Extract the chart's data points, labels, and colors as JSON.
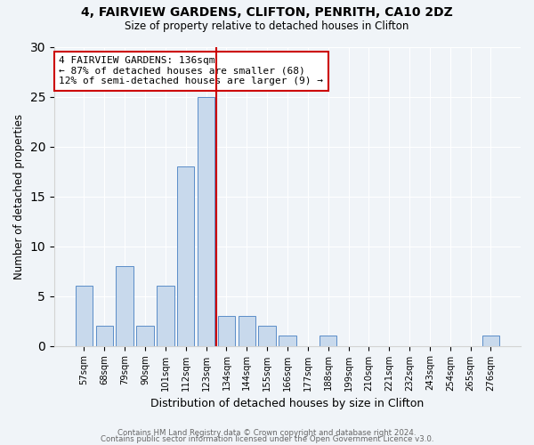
{
  "title1": "4, FAIRVIEW GARDENS, CLIFTON, PENRITH, CA10 2DZ",
  "title2": "Size of property relative to detached houses in Clifton",
  "xlabel": "Distribution of detached houses by size in Clifton",
  "ylabel": "Number of detached properties",
  "categories": [
    "57sqm",
    "68sqm",
    "79sqm",
    "90sqm",
    "101sqm",
    "112sqm",
    "123sqm",
    "134sqm",
    "144sqm",
    "155sqm",
    "166sqm",
    "177sqm",
    "188sqm",
    "199sqm",
    "210sqm",
    "221sqm",
    "232sqm",
    "243sqm",
    "254sqm",
    "265sqm",
    "276sqm"
  ],
  "values": [
    6,
    2,
    8,
    2,
    6,
    18,
    25,
    3,
    3,
    2,
    1,
    0,
    1,
    0,
    0,
    0,
    0,
    0,
    0,
    0,
    1
  ],
  "bar_color": "#c8d9ec",
  "bar_edge_color": "#5b8dc8",
  "highlight_line_color": "#cc0000",
  "highlight_after_index": 6,
  "annotation_text": "4 FAIRVIEW GARDENS: 136sqm\n← 87% of detached houses are smaller (68)\n12% of semi-detached houses are larger (9) →",
  "annotation_box_color": "#ffffff",
  "annotation_box_edge_color": "#cc0000",
  "ylim": [
    0,
    30
  ],
  "yticks": [
    0,
    5,
    10,
    15,
    20,
    25,
    30
  ],
  "footer1": "Contains HM Land Registry data © Crown copyright and database right 2024.",
  "footer2": "Contains public sector information licensed under the Open Government Licence v3.0."
}
